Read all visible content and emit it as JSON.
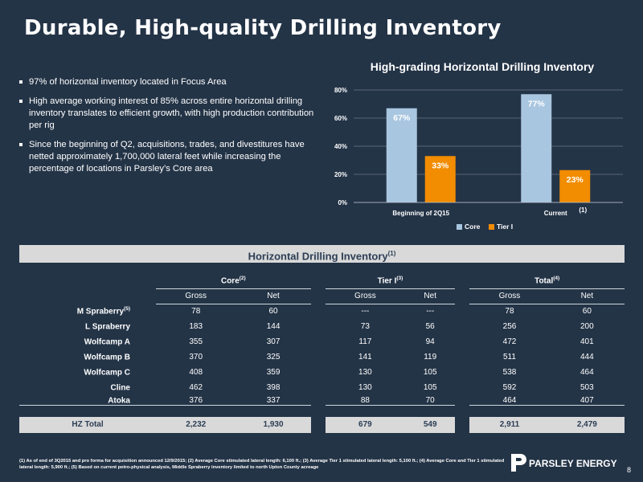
{
  "slide": {
    "title": "Durable, High-quality Drilling Inventory",
    "page_number": "8",
    "brand": "PARSLEY ENERGY"
  },
  "bullets": [
    "97% of horizontal inventory located in Focus Area",
    "High average working interest of 85% across entire horizontal drilling inventory translates to efficient growth, with high production contribution per rig",
    "Since the beginning of Q2, acquisitions, trades, and divestitures have netted approximately 1,700,000 lateral feet while increasing the percentage of locations in Parsley’s Core area"
  ],
  "chart_data": {
    "type": "bar",
    "title": "High-grading Horizontal Drilling Inventory",
    "categories": [
      "Beginning of 2Q15",
      "Current"
    ],
    "category_superscripts": [
      "",
      "(1)"
    ],
    "series": [
      {
        "name": "Core",
        "values": [
          67,
          77
        ],
        "labels": [
          "67%",
          "77%"
        ],
        "color": "#a9c6e0"
      },
      {
        "name": "Tier I",
        "values": [
          33,
          23
        ],
        "labels": [
          "33%",
          "23%"
        ],
        "color": "#f28c00"
      }
    ],
    "y_ticks": [
      "0%",
      "20%",
      "40%",
      "60%",
      "80%"
    ],
    "ylim": [
      0,
      80
    ],
    "grid": true,
    "legend_position": "bottom"
  },
  "table": {
    "banner": "Horizontal Drilling Inventory",
    "banner_sup": "(1)",
    "groups": [
      {
        "label": "Core",
        "sup": "(2)"
      },
      {
        "label": "Tier I",
        "sup": "(3)"
      },
      {
        "label": "Total",
        "sup": "(4)"
      }
    ],
    "sub_headers": [
      "Gross",
      "Net",
      "Gross",
      "Net",
      "Gross",
      "Net"
    ],
    "rows": [
      {
        "label": "M Spraberry",
        "sup": "(5)",
        "values": [
          "78",
          "60",
          "---",
          "---",
          "78",
          "60"
        ]
      },
      {
        "label": "L Spraberry",
        "sup": "",
        "values": [
          "183",
          "144",
          "73",
          "56",
          "256",
          "200"
        ]
      },
      {
        "label": "Wolfcamp A",
        "sup": "",
        "values": [
          "355",
          "307",
          "117",
          "94",
          "472",
          "401"
        ]
      },
      {
        "label": "Wolfcamp B",
        "sup": "",
        "values": [
          "370",
          "325",
          "141",
          "119",
          "511",
          "444"
        ]
      },
      {
        "label": "Wolfcamp C",
        "sup": "",
        "values": [
          "408",
          "359",
          "130",
          "105",
          "538",
          "464"
        ]
      },
      {
        "label": "Cline",
        "sup": "",
        "values": [
          "462",
          "398",
          "130",
          "105",
          "592",
          "503"
        ]
      },
      {
        "label": "Atoka",
        "sup": "",
        "values": [
          "376",
          "337",
          "88",
          "70",
          "464",
          "407"
        ]
      }
    ],
    "total": {
      "label": "HZ Total",
      "values": [
        "2,232",
        "1,930",
        "679",
        "549",
        "2,911",
        "2,479"
      ]
    }
  },
  "footnote": "(1) As of end of 3Q2015 and pro forma for acquisition announced 12/9/2015; (2) Average Core stimulated lateral length: 6,100 ft.; (3) Average Tier 1 stimulated lateral length: 5,100 ft.; (4) Average Core and Tier 1 stimulated lateral length: 5,900 ft.; (5) Based on current petro-physical analysis, Middle Spraberry inventory limited to north Upton County acreage",
  "colors": {
    "background": "#243447",
    "core": "#a9c6e0",
    "tier1": "#f28c00",
    "banner": "#d9d9d9"
  }
}
